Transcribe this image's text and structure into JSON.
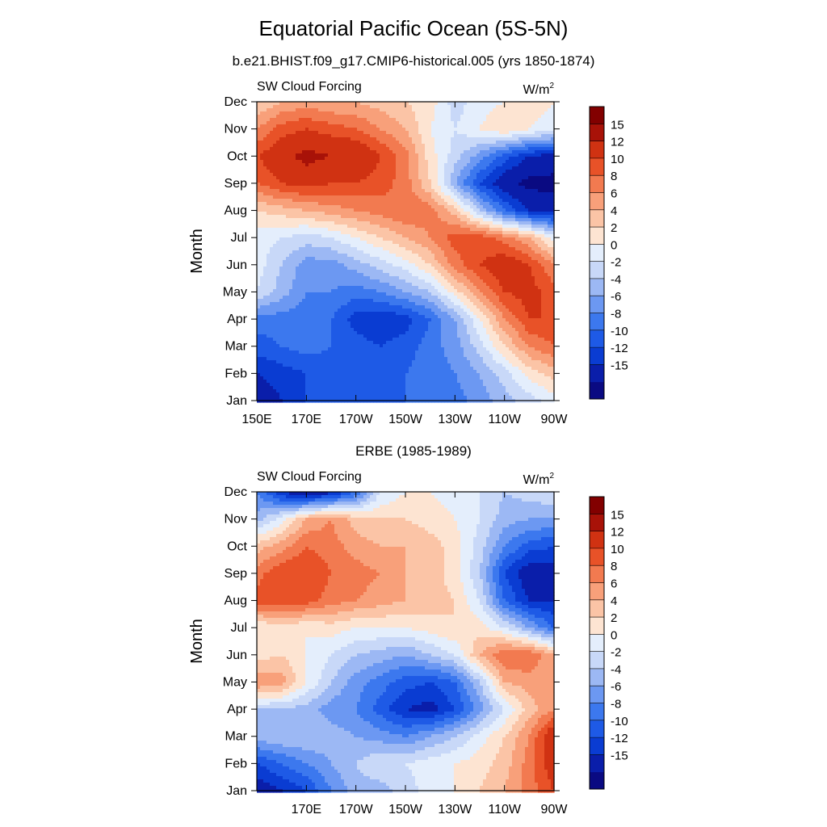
{
  "figure": {
    "title": "Equatorial Pacific Ocean (5S-5N)"
  },
  "chart_data": [
    {
      "type": "heatmap",
      "title": "b.e21.BHIST.f09_g17.CMIP6-historical.005 (yrs 1850-1874)",
      "left_label": "SW Cloud Forcing",
      "units_label": "W/m",
      "units_superscript": "2",
      "ylabel": "Month",
      "xlabel": "",
      "x_tick_labels": [
        "150E",
        "170E",
        "170W",
        "150W",
        "130W",
        "110W",
        "90W"
      ],
      "x_tick_values": [
        150,
        170,
        190,
        210,
        230,
        250,
        270
      ],
      "xlim": [
        150,
        270
      ],
      "y_tick_labels": [
        "Jan",
        "Feb",
        "Mar",
        "Apr",
        "May",
        "Jun",
        "Jul",
        "Aug",
        "Sep",
        "Oct",
        "Nov",
        "Dec"
      ],
      "ylim": [
        1,
        12
      ],
      "colorbar_labels": [
        "15",
        "12",
        "10",
        "8",
        "6",
        "4",
        "2",
        "0",
        "-2",
        "-4",
        "-6",
        "-8",
        "-10",
        "-12",
        "-15"
      ],
      "x": [
        150,
        160,
        170,
        180,
        190,
        200,
        210,
        220,
        230,
        240,
        250,
        260,
        270
      ],
      "y": [
        "Jan",
        "Feb",
        "Mar",
        "Apr",
        "May",
        "Jun",
        "Jul",
        "Aug",
        "Sep",
        "Oct",
        "Nov",
        "Dec"
      ],
      "z": [
        [
          -14,
          -12,
          -10,
          -10,
          -10,
          -9,
          -8,
          -8,
          -7,
          -5,
          -3,
          -1,
          1
        ],
        [
          -12,
          -11,
          -10,
          -9,
          -9,
          -9,
          -8,
          -7,
          -6,
          -4,
          -1,
          3,
          5
        ],
        [
          -9,
          -8,
          -7,
          -8,
          -9,
          -10,
          -9,
          -7,
          -5,
          -1,
          4,
          8,
          10
        ],
        [
          -7,
          -7,
          -7,
          -8,
          -11,
          -12,
          -11,
          -8,
          -4,
          2,
          8,
          12,
          12
        ],
        [
          0,
          -3,
          -6,
          -6,
          -7,
          -6,
          -4,
          -2,
          3,
          8,
          12,
          13,
          11
        ],
        [
          1,
          -2,
          -5,
          -5,
          -3,
          -1,
          1,
          4,
          9,
          12,
          14,
          12,
          8
        ],
        [
          1,
          0,
          -1,
          0,
          2,
          4,
          6,
          8,
          11,
          11,
          9,
          6,
          1
        ],
        [
          4,
          5,
          6,
          7,
          8,
          9,
          10,
          9,
          5,
          -2,
          -8,
          -12,
          -13
        ],
        [
          10,
          12,
          13,
          12,
          12,
          11,
          9,
          4,
          -4,
          -10,
          -14,
          -16,
          -16
        ],
        [
          12,
          14,
          16,
          15,
          15,
          12,
          9,
          3,
          -1,
          -5,
          -9,
          -12,
          -13
        ],
        [
          8,
          11,
          12,
          11,
          10,
          8,
          6,
          2,
          0,
          2,
          4,
          2,
          1
        ],
        [
          4,
          6,
          7,
          6,
          6,
          5,
          4,
          3,
          -1,
          1,
          2,
          3,
          2
        ]
      ]
    },
    {
      "type": "heatmap",
      "title": "ERBE (1985-1989)",
      "left_label": "SW Cloud Forcing",
      "units_label": "W/m",
      "units_superscript": "2",
      "ylabel": "Month",
      "xlabel": "",
      "x_tick_labels": [
        "170E",
        "170W",
        "150W",
        "130W",
        "110W",
        "90W"
      ],
      "x_tick_values": [
        170,
        190,
        210,
        230,
        250,
        270
      ],
      "xlim": [
        150,
        270
      ],
      "y_tick_labels": [
        "Jan",
        "Feb",
        "Mar",
        "Apr",
        "May",
        "Jun",
        "Jul",
        "Aug",
        "Sep",
        "Oct",
        "Nov",
        "Dec"
      ],
      "ylim": [
        1,
        12
      ],
      "colorbar_labels": [
        "15",
        "12",
        "10",
        "8",
        "6",
        "4",
        "2",
        "0",
        "-2",
        "-4",
        "-6",
        "-8",
        "-10",
        "-12",
        "-15"
      ],
      "x": [
        150,
        160,
        170,
        180,
        190,
        200,
        210,
        220,
        230,
        240,
        250,
        260,
        270
      ],
      "y": [
        "Jan",
        "Feb",
        "Mar",
        "Apr",
        "May",
        "Jun",
        "Jul",
        "Aug",
        "Sep",
        "Oct",
        "Nov",
        "Dec"
      ],
      "z": [
        [
          -14,
          -12,
          -10,
          -6,
          -3,
          -3,
          -1,
          1,
          2,
          4,
          6,
          9,
          12
        ],
        [
          -10,
          -8,
          -6,
          -4,
          -2,
          0,
          0,
          1,
          2,
          3,
          5,
          9,
          14
        ],
        [
          -3,
          -2,
          -2,
          -3,
          -4,
          -5,
          -6,
          -4,
          -2,
          1,
          4,
          8,
          15
        ],
        [
          -2,
          -2,
          -3,
          -5,
          -6,
          -9,
          -12,
          -13,
          -10,
          -5,
          0,
          5,
          8
        ],
        [
          8,
          7,
          2,
          -2,
          -5,
          -7,
          -9,
          -10,
          -8,
          -2,
          6,
          7,
          6
        ],
        [
          3,
          4,
          2,
          0,
          -2,
          -3,
          -4,
          -2,
          0,
          6,
          10,
          10,
          6
        ],
        [
          2,
          3,
          2,
          3,
          2,
          2,
          2,
          3,
          4,
          3,
          0,
          -4,
          -8
        ],
        [
          11,
          12,
          11,
          9,
          8,
          7,
          6,
          5,
          4,
          0,
          -8,
          -12,
          -12
        ],
        [
          9,
          12,
          12,
          10,
          9,
          8,
          6,
          5,
          3,
          -2,
          -10,
          -14,
          -13
        ],
        [
          5,
          7,
          10,
          9,
          7,
          6,
          6,
          5,
          3,
          -1,
          -6,
          -9,
          -10
        ],
        [
          -3,
          1,
          6,
          8,
          5,
          4,
          4,
          3,
          2,
          0,
          -3,
          -4,
          -4
        ],
        [
          -6,
          -12,
          -15,
          -13,
          -8,
          0,
          2,
          2,
          1,
          0,
          -2,
          -1,
          0
        ]
      ]
    }
  ]
}
